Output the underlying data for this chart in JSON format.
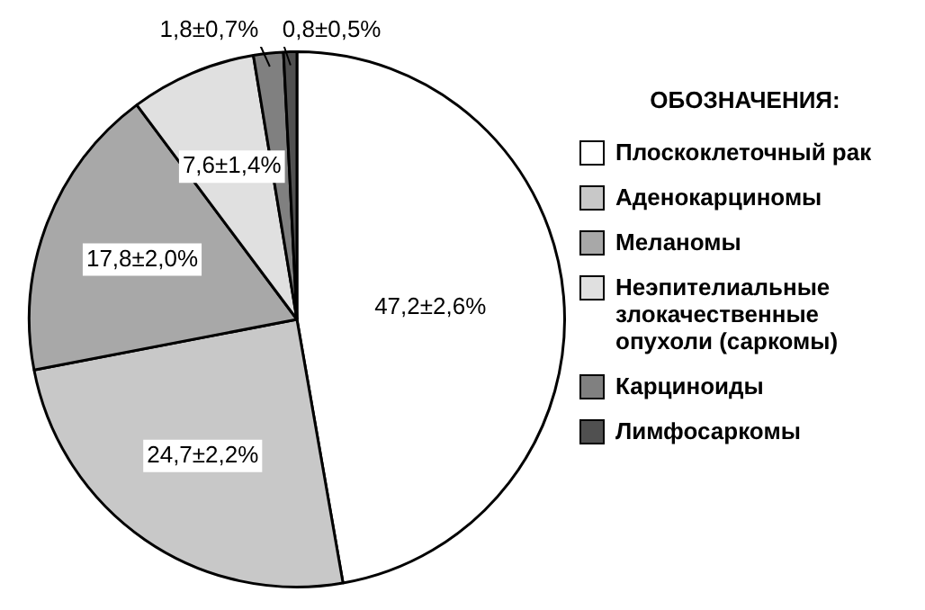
{
  "chart_data": {
    "type": "pie",
    "legend_title": "ОБОЗНАЧЕНИЯ:",
    "legend": "right",
    "categories": [
      "Плоскоклеточный рак",
      "Аденокарциномы",
      "Меланомы",
      "Неэпителиальные злокачественные опухоли (саркомы)",
      "Карциноиды",
      "Лимфосаркомы"
    ],
    "values": [
      47.2,
      24.7,
      17.8,
      7.6,
      1.8,
      0.8
    ],
    "value_labels": [
      "47,2±2,6%",
      "24,7±2,2%",
      "17,8±2,0%",
      "7,6±1,4%",
      "1,8±0,7%",
      "0,8±0,5%"
    ],
    "colors": [
      "#ffffff",
      "#c8c8c8",
      "#a8a8a8",
      "#e0e0e0",
      "#808080",
      "#505050"
    ]
  }
}
